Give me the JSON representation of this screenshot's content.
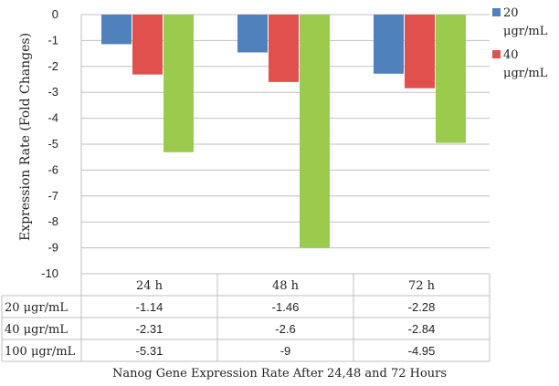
{
  "chart_data": {
    "type": "bar",
    "title": "",
    "xlabel": "Nanog Gene Expression Rate After 24,48 and 72 Hours",
    "ylabel": "Expression Rate (Fold Changes)",
    "categories": [
      "24 h",
      "48 h",
      "72 h"
    ],
    "series": [
      {
        "name": "20 μgr/mL",
        "values": [
          -1.14,
          -1.46,
          -2.28
        ],
        "color": "#4f81bd"
      },
      {
        "name": "40 μgr/mL",
        "values": [
          -2.31,
          -2.6,
          -2.84
        ],
        "color": "#e0504d"
      },
      {
        "name": "100 μgr/mL",
        "values": [
          -5.31,
          -9,
          -4.95
        ],
        "color": "#9bcb4d"
      }
    ],
    "value_labels": [
      [
        "-1.14",
        "-1.46",
        "-2.28"
      ],
      [
        "-2.31",
        "-2.6",
        "-2.84"
      ],
      [
        "-5.31",
        "-9",
        "-4.95"
      ]
    ],
    "ylim": [
      -10,
      0
    ],
    "yticks": [
      0,
      -1,
      -2,
      -3,
      -4,
      -5,
      -6,
      -7,
      -8,
      -9,
      -10
    ],
    "grid": true,
    "legend_position": "top-right",
    "legend_visible_entries": 2,
    "data_table": true
  }
}
